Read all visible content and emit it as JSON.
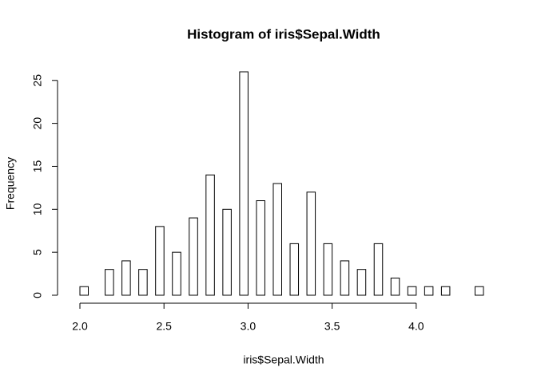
{
  "chart_data": {
    "type": "histogram",
    "title": "Histogram of iris$Sepal.Width",
    "x_label": "iris$Sepal.Width",
    "y_label": "Frequency",
    "bins": [
      2,
      2.05,
      2.1,
      2.15,
      2.2,
      2.25,
      2.3,
      2.35,
      2.4,
      2.45,
      2.5,
      2.55,
      2.6,
      2.65,
      2.7,
      2.75,
      2.8,
      2.85,
      2.9,
      2.95,
      3,
      3.05,
      3.1,
      3.15,
      3.2,
      3.25,
      3.3,
      3.35,
      3.4,
      3.45,
      3.5,
      3.55,
      3.6,
      3.65,
      3.7,
      3.75,
      3.8,
      3.85,
      3.9,
      3.95,
      4,
      4.05,
      4.1,
      4.15,
      4.2,
      4.25,
      4.3,
      4.35,
      4.4
    ],
    "values": [
      1,
      0,
      0,
      3,
      0,
      4,
      0,
      3,
      0,
      8,
      0,
      5,
      0,
      9,
      0,
      14,
      0,
      10,
      0,
      26,
      0,
      11,
      0,
      13,
      0,
      6,
      0,
      12,
      0,
      6,
      0,
      4,
      0,
      3,
      0,
      6,
      0,
      2,
      0,
      1,
      0,
      1,
      0,
      1,
      0,
      0,
      0,
      1
    ],
    "color": "#ffffff",
    "xlim": [
      2.0,
      4.4
    ],
    "ylim": [
      0,
      26
    ],
    "xticks": [
      {
        "value": 2,
        "label": "2.0"
      },
      2.5,
      {
        "value": 3,
        "label": "3.0"
      },
      3.5,
      {
        "value": 4,
        "label": "4.0"
      }
    ],
    "yticks": [
      0,
      5,
      10,
      15,
      20,
      25
    ]
  }
}
